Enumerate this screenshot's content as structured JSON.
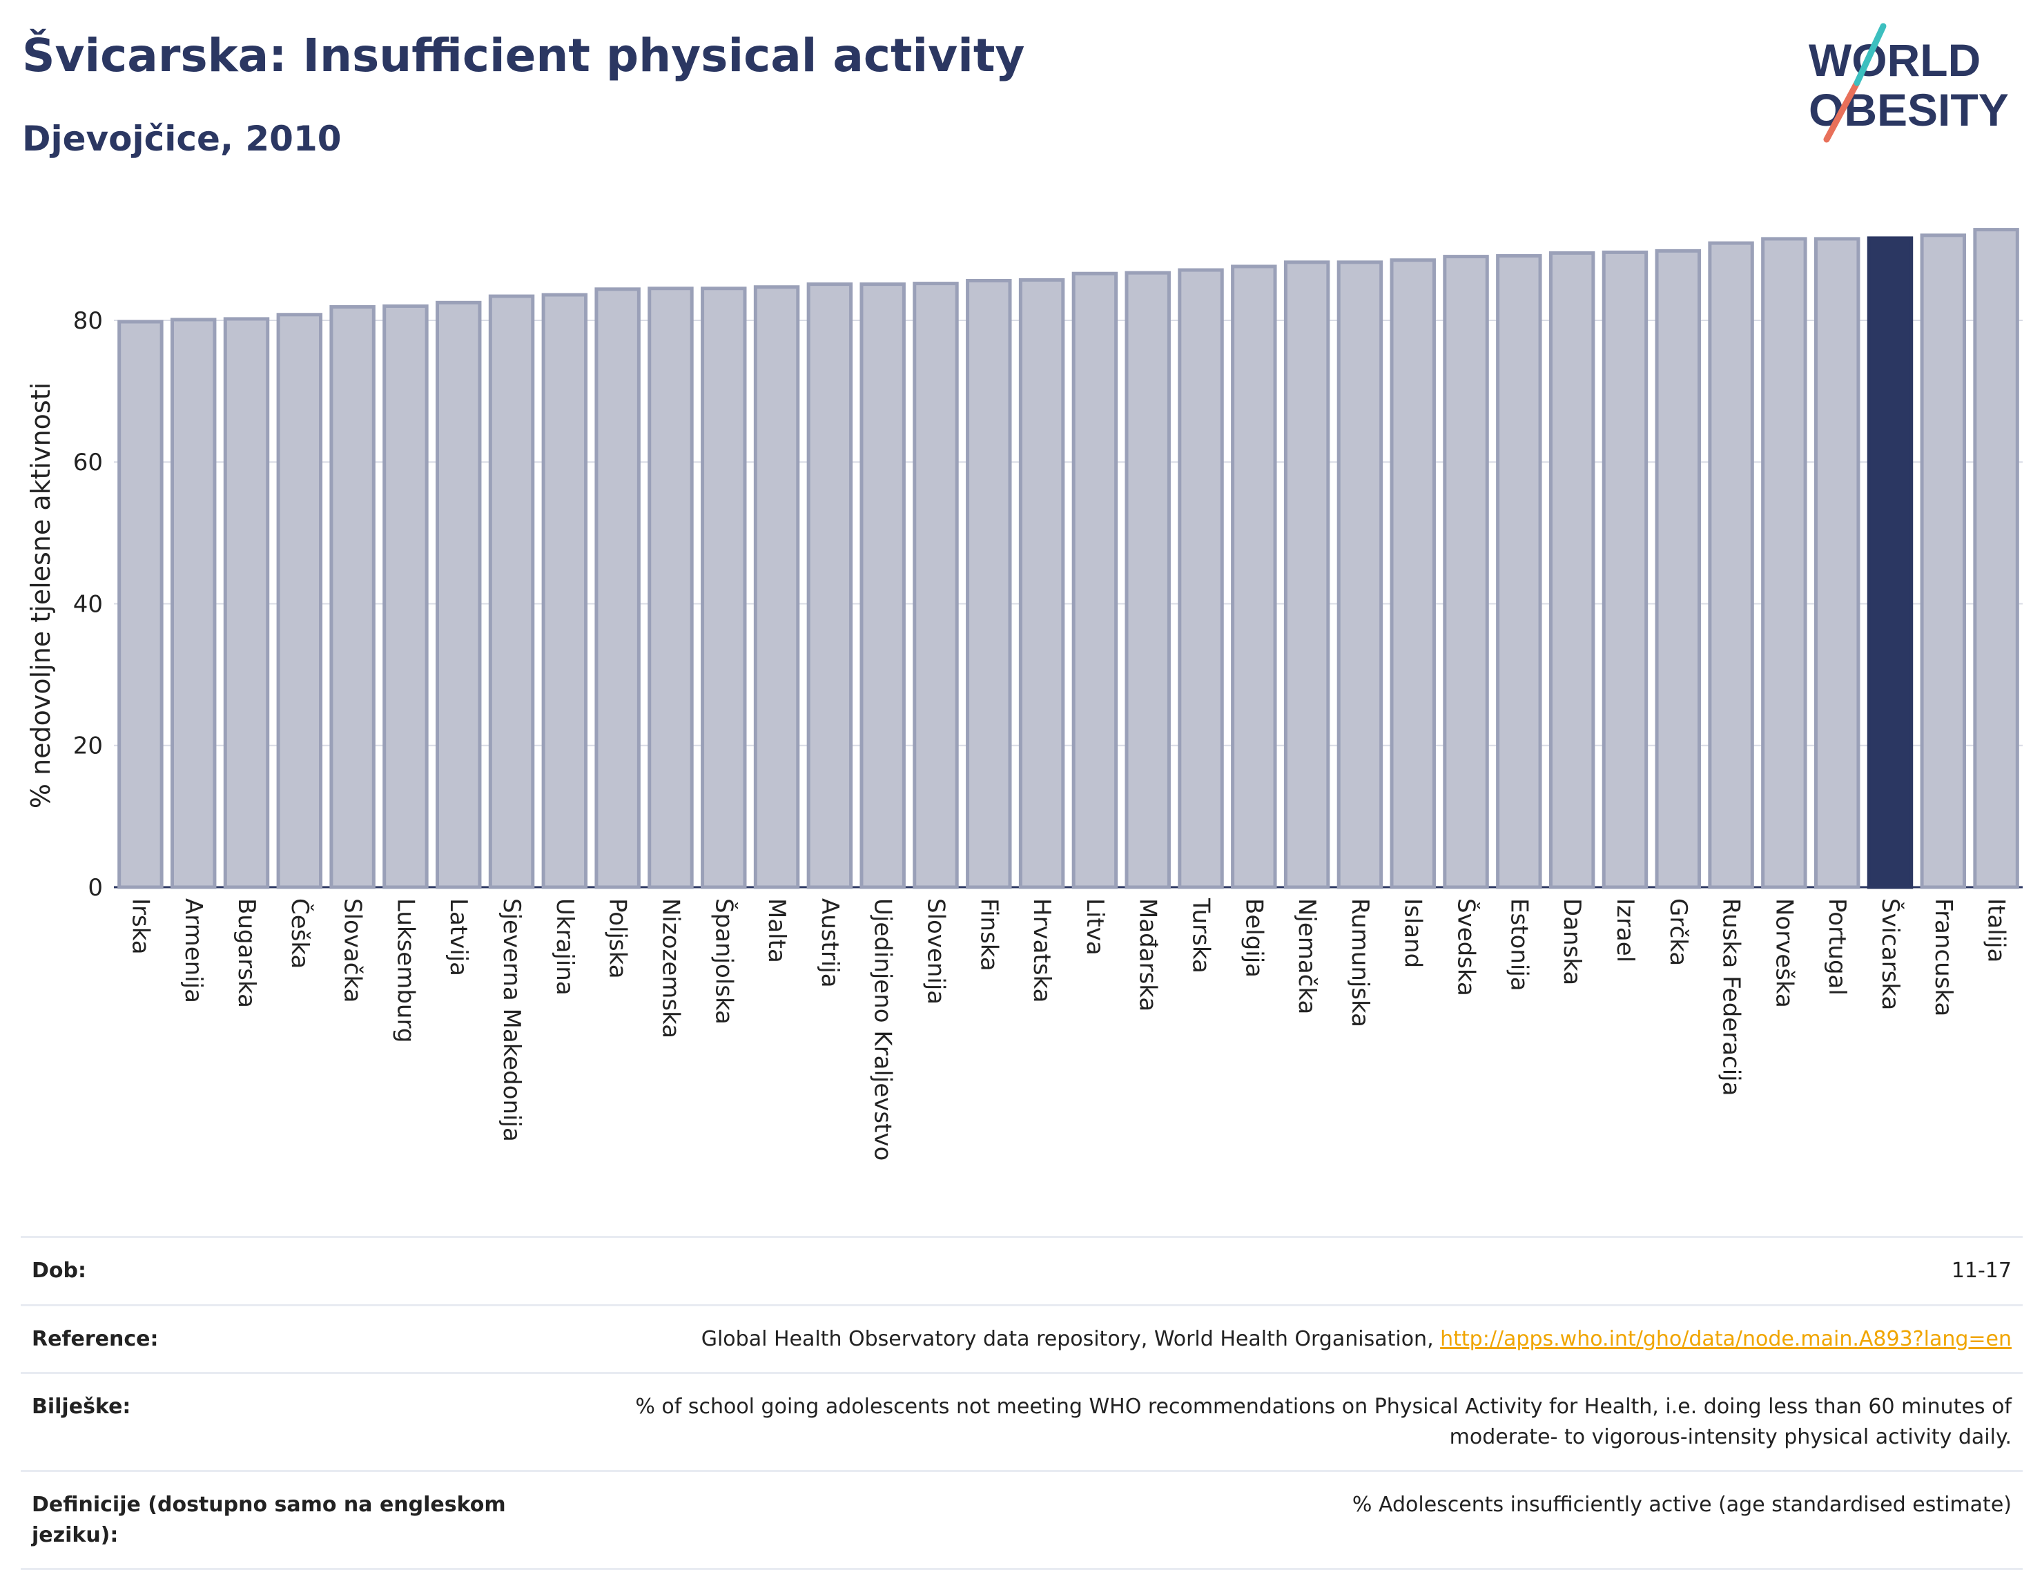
{
  "header": {
    "title": "Švicarska: Insufficient physical activity",
    "subtitle": "Djevojčice, 2010"
  },
  "logo": {
    "line1": "WORLD",
    "line2": "OBESITY"
  },
  "colors": {
    "bar": "#bfc2d0",
    "bar_edge": "#9aa0b8",
    "highlight": "#2b3762",
    "title": "#2b3762",
    "link": "#f0a500"
  },
  "chart_data": {
    "type": "bar",
    "ylabel": "% nedovoljne tjelesne aktivnosti",
    "ylim": [
      0,
      95
    ],
    "yticks": [
      0,
      20,
      40,
      60,
      80
    ],
    "grid": true,
    "highlight": "Švicarska",
    "categories": [
      "Irska",
      "Armenija",
      "Bugarska",
      "Češka",
      "Slovačka",
      "Luksemburg",
      "Latvija",
      "Sjeverna Makedonija",
      "Ukrajina",
      "Poljska",
      "Nizozemska",
      "Španjolska",
      "Malta",
      "Austrija",
      "Ujedinjeno Kraljevstvo",
      "Slovenija",
      "Finska",
      "Hrvatska",
      "Litva",
      "Mađarska",
      "Turska",
      "Belgija",
      "Njemačka",
      "Rumunjska",
      "Island",
      "Švedska",
      "Estonija",
      "Danska",
      "Izrael",
      "Grčka",
      "Ruska Federacija",
      "Norveška",
      "Portugal",
      "Švicarska",
      "Francuska",
      "Italija"
    ],
    "values": [
      79.8,
      80.1,
      80.2,
      80.8,
      81.9,
      82.0,
      82.5,
      83.4,
      83.6,
      84.4,
      84.5,
      84.5,
      84.7,
      85.1,
      85.1,
      85.2,
      85.6,
      85.7,
      86.6,
      86.7,
      87.1,
      87.6,
      88.2,
      88.2,
      88.5,
      89.0,
      89.1,
      89.5,
      89.6,
      89.8,
      90.9,
      91.5,
      91.5,
      91.6,
      92.0,
      92.8
    ]
  },
  "meta": {
    "dob_label": "Dob:",
    "dob_value": "11-17",
    "ref_label": "Reference:",
    "ref_text": "Global Health Observatory data repository, World Health Organisation, ",
    "ref_link": "http://apps.who.int/gho/data/node.main.A893?lang=en",
    "notes_label": "Bilješke:",
    "notes_value": "% of school going adolescents not meeting WHO recommendations on Physical Activity for Health, i.e. doing less than 60 minutes of moderate- to vigorous-intensity physical activity daily.",
    "def_label": "Definicije (dostupno samo na engleskom jeziku):",
    "def_value": "% Adolescents insufficiently active (age standardised estimate)"
  }
}
